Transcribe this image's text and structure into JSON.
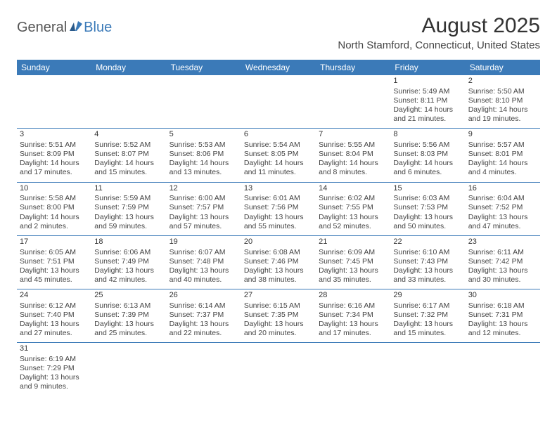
{
  "logo": {
    "part1": "General",
    "part2": "Blue"
  },
  "title": "August 2025",
  "location": "North Stamford, Connecticut, United States",
  "colors": {
    "header_bg": "#3b7ab8",
    "header_text": "#ffffff",
    "border": "#3b7ab8",
    "text": "#444444",
    "logo_gray": "#555555",
    "logo_blue": "#3b7ab8"
  },
  "weekdays": [
    "Sunday",
    "Monday",
    "Tuesday",
    "Wednesday",
    "Thursday",
    "Friday",
    "Saturday"
  ],
  "weeks": [
    [
      null,
      null,
      null,
      null,
      null,
      {
        "n": "1",
        "sr": "Sunrise: 5:49 AM",
        "ss": "Sunset: 8:11 PM",
        "dl": "Daylight: 14 hours and 21 minutes."
      },
      {
        "n": "2",
        "sr": "Sunrise: 5:50 AM",
        "ss": "Sunset: 8:10 PM",
        "dl": "Daylight: 14 hours and 19 minutes."
      }
    ],
    [
      {
        "n": "3",
        "sr": "Sunrise: 5:51 AM",
        "ss": "Sunset: 8:09 PM",
        "dl": "Daylight: 14 hours and 17 minutes."
      },
      {
        "n": "4",
        "sr": "Sunrise: 5:52 AM",
        "ss": "Sunset: 8:07 PM",
        "dl": "Daylight: 14 hours and 15 minutes."
      },
      {
        "n": "5",
        "sr": "Sunrise: 5:53 AM",
        "ss": "Sunset: 8:06 PM",
        "dl": "Daylight: 14 hours and 13 minutes."
      },
      {
        "n": "6",
        "sr": "Sunrise: 5:54 AM",
        "ss": "Sunset: 8:05 PM",
        "dl": "Daylight: 14 hours and 11 minutes."
      },
      {
        "n": "7",
        "sr": "Sunrise: 5:55 AM",
        "ss": "Sunset: 8:04 PM",
        "dl": "Daylight: 14 hours and 8 minutes."
      },
      {
        "n": "8",
        "sr": "Sunrise: 5:56 AM",
        "ss": "Sunset: 8:03 PM",
        "dl": "Daylight: 14 hours and 6 minutes."
      },
      {
        "n": "9",
        "sr": "Sunrise: 5:57 AM",
        "ss": "Sunset: 8:01 PM",
        "dl": "Daylight: 14 hours and 4 minutes."
      }
    ],
    [
      {
        "n": "10",
        "sr": "Sunrise: 5:58 AM",
        "ss": "Sunset: 8:00 PM",
        "dl": "Daylight: 14 hours and 2 minutes."
      },
      {
        "n": "11",
        "sr": "Sunrise: 5:59 AM",
        "ss": "Sunset: 7:59 PM",
        "dl": "Daylight: 13 hours and 59 minutes."
      },
      {
        "n": "12",
        "sr": "Sunrise: 6:00 AM",
        "ss": "Sunset: 7:57 PM",
        "dl": "Daylight: 13 hours and 57 minutes."
      },
      {
        "n": "13",
        "sr": "Sunrise: 6:01 AM",
        "ss": "Sunset: 7:56 PM",
        "dl": "Daylight: 13 hours and 55 minutes."
      },
      {
        "n": "14",
        "sr": "Sunrise: 6:02 AM",
        "ss": "Sunset: 7:55 PM",
        "dl": "Daylight: 13 hours and 52 minutes."
      },
      {
        "n": "15",
        "sr": "Sunrise: 6:03 AM",
        "ss": "Sunset: 7:53 PM",
        "dl": "Daylight: 13 hours and 50 minutes."
      },
      {
        "n": "16",
        "sr": "Sunrise: 6:04 AM",
        "ss": "Sunset: 7:52 PM",
        "dl": "Daylight: 13 hours and 47 minutes."
      }
    ],
    [
      {
        "n": "17",
        "sr": "Sunrise: 6:05 AM",
        "ss": "Sunset: 7:51 PM",
        "dl": "Daylight: 13 hours and 45 minutes."
      },
      {
        "n": "18",
        "sr": "Sunrise: 6:06 AM",
        "ss": "Sunset: 7:49 PM",
        "dl": "Daylight: 13 hours and 42 minutes."
      },
      {
        "n": "19",
        "sr": "Sunrise: 6:07 AM",
        "ss": "Sunset: 7:48 PM",
        "dl": "Daylight: 13 hours and 40 minutes."
      },
      {
        "n": "20",
        "sr": "Sunrise: 6:08 AM",
        "ss": "Sunset: 7:46 PM",
        "dl": "Daylight: 13 hours and 38 minutes."
      },
      {
        "n": "21",
        "sr": "Sunrise: 6:09 AM",
        "ss": "Sunset: 7:45 PM",
        "dl": "Daylight: 13 hours and 35 minutes."
      },
      {
        "n": "22",
        "sr": "Sunrise: 6:10 AM",
        "ss": "Sunset: 7:43 PM",
        "dl": "Daylight: 13 hours and 33 minutes."
      },
      {
        "n": "23",
        "sr": "Sunrise: 6:11 AM",
        "ss": "Sunset: 7:42 PM",
        "dl": "Daylight: 13 hours and 30 minutes."
      }
    ],
    [
      {
        "n": "24",
        "sr": "Sunrise: 6:12 AM",
        "ss": "Sunset: 7:40 PM",
        "dl": "Daylight: 13 hours and 27 minutes."
      },
      {
        "n": "25",
        "sr": "Sunrise: 6:13 AM",
        "ss": "Sunset: 7:39 PM",
        "dl": "Daylight: 13 hours and 25 minutes."
      },
      {
        "n": "26",
        "sr": "Sunrise: 6:14 AM",
        "ss": "Sunset: 7:37 PM",
        "dl": "Daylight: 13 hours and 22 minutes."
      },
      {
        "n": "27",
        "sr": "Sunrise: 6:15 AM",
        "ss": "Sunset: 7:35 PM",
        "dl": "Daylight: 13 hours and 20 minutes."
      },
      {
        "n": "28",
        "sr": "Sunrise: 6:16 AM",
        "ss": "Sunset: 7:34 PM",
        "dl": "Daylight: 13 hours and 17 minutes."
      },
      {
        "n": "29",
        "sr": "Sunrise: 6:17 AM",
        "ss": "Sunset: 7:32 PM",
        "dl": "Daylight: 13 hours and 15 minutes."
      },
      {
        "n": "30",
        "sr": "Sunrise: 6:18 AM",
        "ss": "Sunset: 7:31 PM",
        "dl": "Daylight: 13 hours and 12 minutes."
      }
    ],
    [
      {
        "n": "31",
        "sr": "Sunrise: 6:19 AM",
        "ss": "Sunset: 7:29 PM",
        "dl": "Daylight: 13 hours and 9 minutes."
      },
      null,
      null,
      null,
      null,
      null,
      null
    ]
  ]
}
